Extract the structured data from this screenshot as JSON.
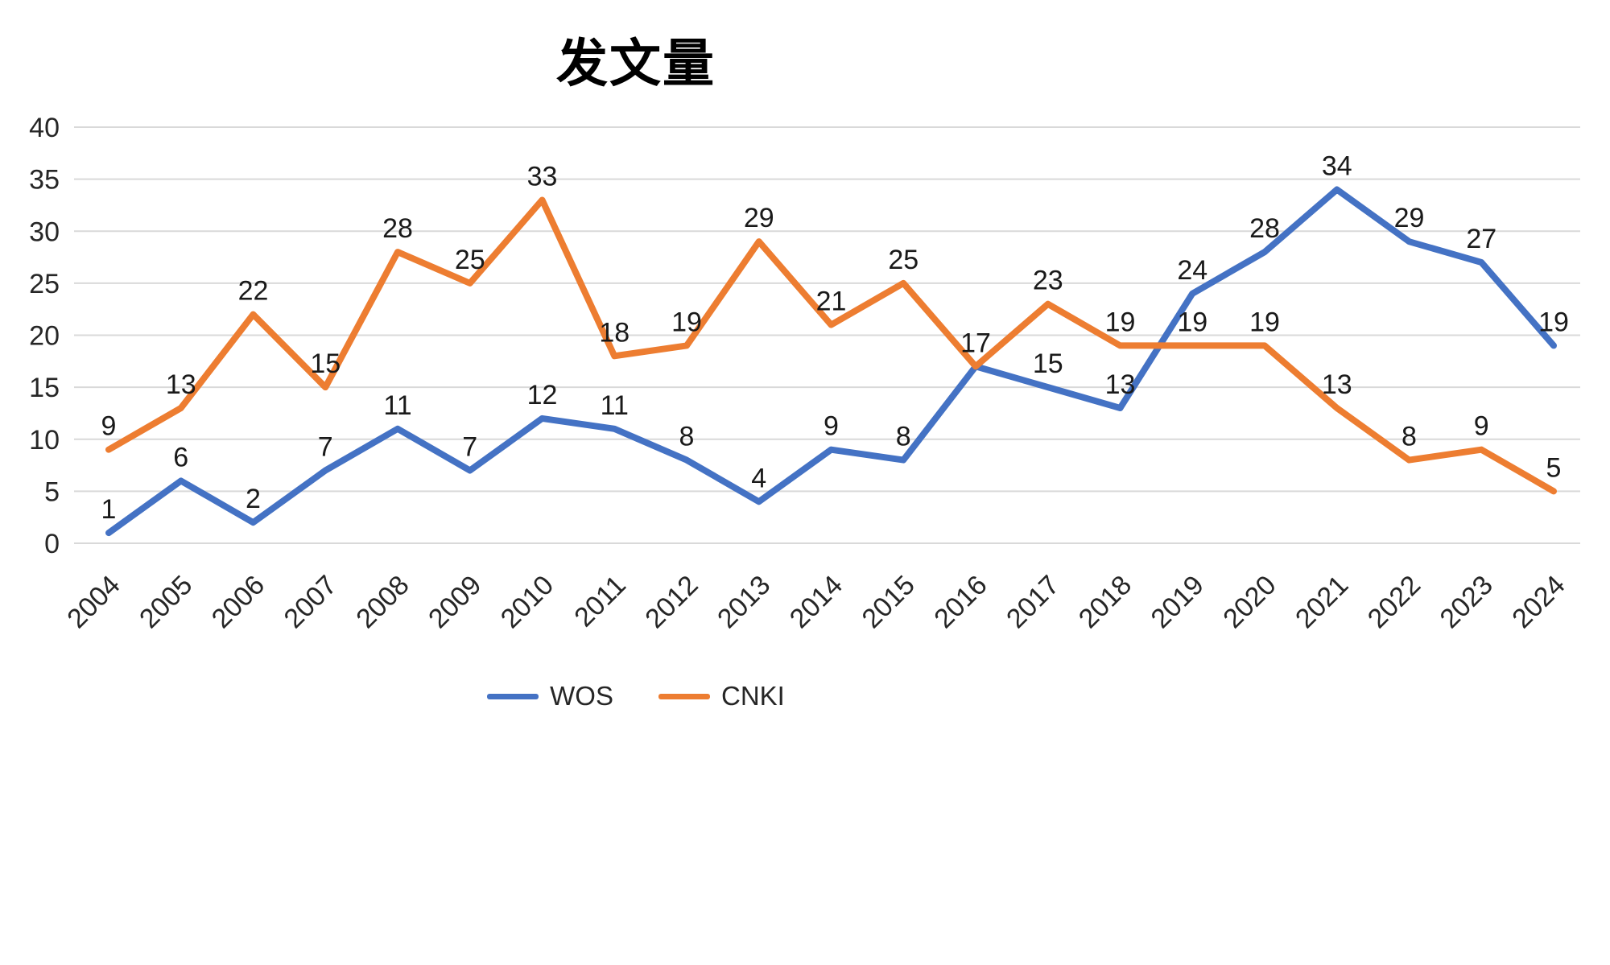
{
  "chart_data": {
    "type": "line",
    "title": "发文量",
    "xlabel": "",
    "ylabel": "",
    "categories": [
      "2004",
      "2005",
      "2006",
      "2007",
      "2008",
      "2009",
      "2010",
      "2011",
      "2012",
      "2013",
      "2014",
      "2015",
      "2016",
      "2017",
      "2018",
      "2019",
      "2020",
      "2021",
      "2022",
      "2023",
      "2024"
    ],
    "series": [
      {
        "name": "WOS",
        "color": "#4472C4",
        "values": [
          1,
          6,
          2,
          7,
          11,
          7,
          12,
          11,
          8,
          4,
          9,
          8,
          17,
          15,
          13,
          24,
          28,
          34,
          29,
          27,
          19
        ]
      },
      {
        "name": "CNKI",
        "color": "#ED7D31",
        "values": [
          9,
          13,
          22,
          15,
          28,
          25,
          33,
          18,
          19,
          29,
          21,
          25,
          17,
          23,
          19,
          19,
          19,
          13,
          8,
          9,
          5
        ]
      }
    ],
    "ylim": [
      0,
      40
    ],
    "yticks": [
      0,
      5,
      10,
      15,
      20,
      25,
      30,
      35,
      40
    ],
    "grid": true,
    "data_labels": true,
    "legend_position": "bottom"
  }
}
